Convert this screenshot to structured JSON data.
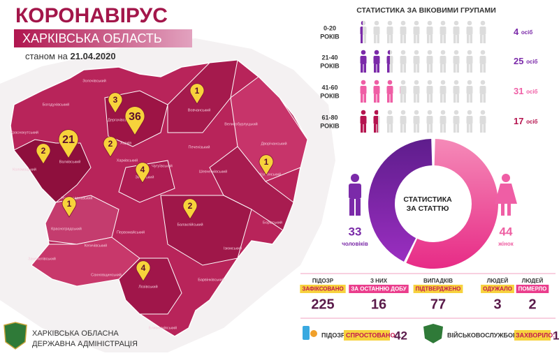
{
  "header": {
    "title": "КОРОНАВІРУС",
    "subtitle": "ХАРКІВСЬКА ОБЛАСТЬ",
    "date_prefix": "станом на",
    "date": "21.04.2020"
  },
  "map": {
    "districts": [
      "Золочівський",
      "Богодухівський",
      "Краснокутський",
      "Коломацький",
      "Валківський",
      "Дергачівський",
      "Харківський",
      "Харків",
      "Вовчанський",
      "Великобурлуцький",
      "Печенізький",
      "Дворічанський",
      "Чугуївський",
      "Зміївський",
      "Шевченківський",
      "Куп'янський",
      "Нововодолазький",
      "Красноградський",
      "Кегичівський",
      "Первомайський",
      "Балаклійський",
      "Борівський",
      "Ізюмський",
      "Зачепилівський",
      "Сахновщинський",
      "Лозівський",
      "Барвінківський",
      "Близнюківський"
    ],
    "pins": [
      3,
      36,
      1,
      21,
      2,
      2,
      4,
      1,
      1,
      2,
      4
    ]
  },
  "age_stats": {
    "title": "СТАТИСТИКА ЗА ВІКОВИМИ ГРУПАМИ",
    "groups": [
      {
        "range": "0-20",
        "unit": "РОКІВ",
        "count": 4,
        "count_unit": "осіб"
      },
      {
        "range": "21-40",
        "unit": "РОКІВ",
        "count": 25,
        "count_unit": "осіб"
      },
      {
        "range": "41-60",
        "unit": "РОКІВ",
        "count": 31,
        "count_unit": "осіб"
      },
      {
        "range": "61-80",
        "unit": "РОКІВ",
        "count": 17,
        "count_unit": "осіб"
      }
    ]
  },
  "gender_stats": {
    "title_lines": [
      "СТАТИСТИКА",
      "ЗА СТАТТЮ"
    ],
    "men": {
      "count": 33,
      "label": "чоловіків"
    },
    "women": {
      "count": 44,
      "label": "жінок"
    }
  },
  "totals": [
    {
      "line1": "ПІДОЗР",
      "line2": "ЗАФІКСОВАНО",
      "value": 225
    },
    {
      "line1": "З НИХ",
      "line2": "ЗА ОСТАННЮ ДОБУ",
      "value": 16
    },
    {
      "line1": "ВИПАДКІВ",
      "line2": "ПІДТВЕРДЖЕНО",
      "value": 77
    },
    {
      "line1": "ЛЮДЕЙ",
      "line2": "ОДУЖАЛО",
      "value": 3
    },
    {
      "line1": "ЛЮДЕЙ",
      "line2": "ПОМЕРЛО",
      "value": 2
    }
  ],
  "bottom": {
    "refuted_label": "ПІДОЗР",
    "refuted_highlight": "СПРОСТОВАНО:",
    "refuted_value": 42,
    "military_label": "ВІЙСЬКОВОСЛУЖБОВЦІВ",
    "military_highlight": "ЗАХВОРІЛО:",
    "military_value": 1
  },
  "footer": {
    "line1": "ХАРКІВСЬКА ОБЛАСНА",
    "line2": "ДЕРЖАВНА АДМІНІСТРАЦІЯ"
  }
}
